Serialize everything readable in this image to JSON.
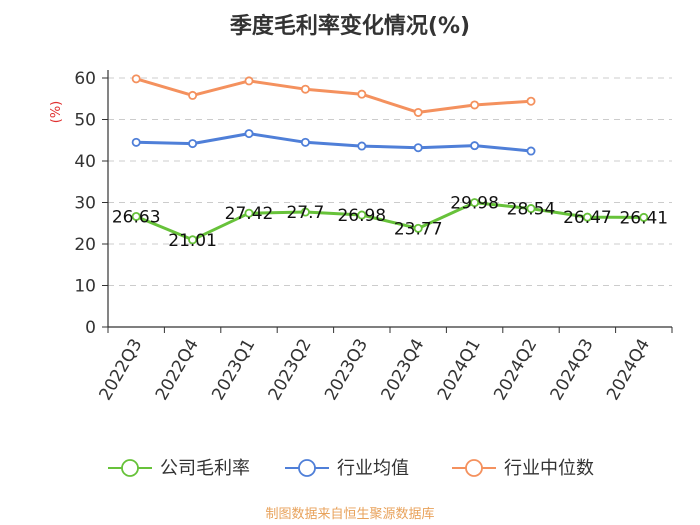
{
  "title": "季度毛利率变化情况(%)",
  "source": "制图数据来自恒生聚源数据库",
  "chart_data": {
    "type": "line",
    "title": "季度毛利率变化情况(%)",
    "ylabel": "(%)",
    "categories": [
      "2022Q3",
      "2022Q4",
      "2023Q1",
      "2023Q2",
      "2023Q3",
      "2023Q4",
      "2024Q1",
      "2024Q2",
      "2024Q3",
      "2024Q4"
    ],
    "ylim": [
      0,
      60
    ],
    "yticks": [
      0,
      10,
      20,
      30,
      40,
      50,
      60
    ],
    "grid": true,
    "legend_position": "bottom",
    "series": [
      {
        "name": "公司毛利率",
        "color": "#67c23a",
        "values": [
          26.63,
          21.01,
          27.42,
          27.7,
          26.98,
          23.77,
          29.98,
          28.54,
          26.47,
          26.41
        ],
        "labels": [
          "26.63",
          "21.01",
          "27.42",
          "27.7",
          "26.98",
          "23.77",
          "29.98",
          "28.54",
          "26.47",
          "26.41"
        ],
        "show_labels": true
      },
      {
        "name": "行业均值",
        "color": "#4f7fd8",
        "values": [
          44.5,
          44.2,
          46.6,
          44.5,
          43.6,
          43.2,
          43.7,
          42.4,
          null,
          null
        ],
        "show_labels": false
      },
      {
        "name": "行业中位数",
        "color": "#f4915e",
        "values": [
          59.8,
          55.8,
          59.3,
          57.3,
          56.1,
          51.7,
          53.5,
          54.4,
          null,
          null
        ],
        "show_labels": false
      }
    ]
  }
}
